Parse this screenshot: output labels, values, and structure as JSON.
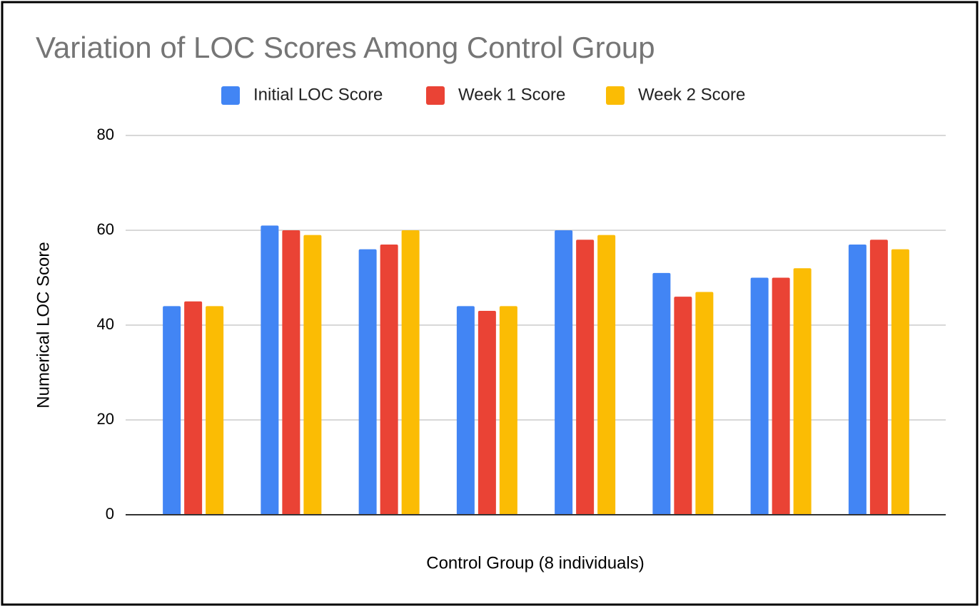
{
  "chart_data": {
    "type": "bar",
    "title": "Variation of LOC Scores Among Control Group",
    "x_label": "Control Group (8 individuals)",
    "y_label": "Numerical LOC Score",
    "categories": [
      null,
      null,
      null,
      null,
      null,
      null,
      null,
      null
    ],
    "series": [
      {
        "name": "Initial LOC Score",
        "color": "#4285f4",
        "values": [
          44,
          61,
          56,
          44,
          60,
          51,
          50,
          57
        ]
      },
      {
        "name": "Week 1 Score",
        "color": "#ea4335",
        "values": [
          45,
          60,
          57,
          43,
          58,
          46,
          50,
          58
        ]
      },
      {
        "name": "Week 2 Score",
        "color": "#fbbc04",
        "values": [
          44,
          59,
          60,
          44,
          59,
          47,
          52,
          56
        ]
      }
    ],
    "ylim": [
      0,
      80
    ],
    "yticks": [
      0,
      20,
      40,
      60,
      80
    ],
    "grid": true,
    "legend": "top"
  }
}
